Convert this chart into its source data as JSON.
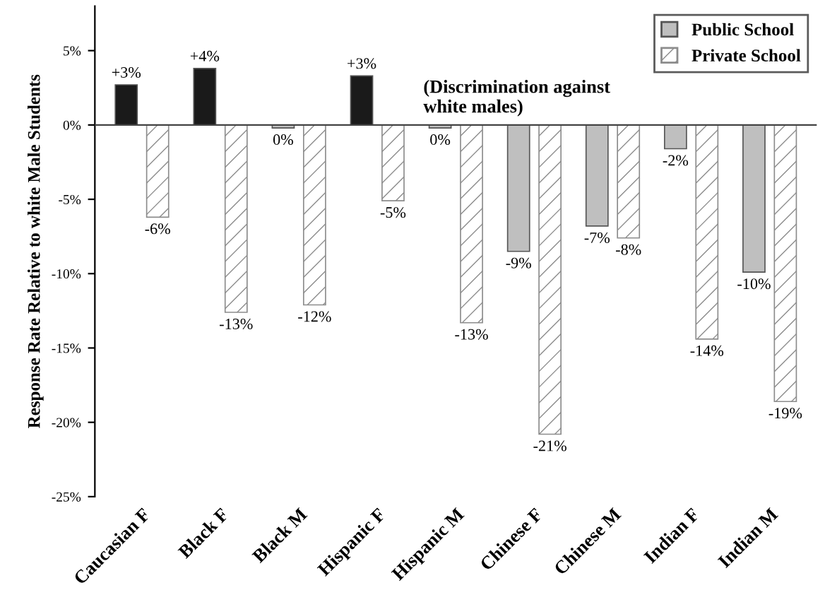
{
  "chart_data": {
    "type": "bar",
    "ylabel": "Response Rate Relative to white Male Students",
    "categories": [
      "Caucasian F",
      "Black F",
      "Black M",
      "Hispanic F",
      "Hispanic M",
      "Chinese F",
      "Chinese M",
      "Indian F",
      "Indian M"
    ],
    "series": [
      {
        "name": "Public School",
        "color": "#bfbfbf",
        "colors": [
          "#1a1a1a",
          "#1a1a1a",
          "#bfbfbf",
          "#1a1a1a",
          "#bfbfbf",
          "#bfbfbf",
          "#bfbfbf",
          "#bfbfbf",
          "#bfbfbf"
        ],
        "values": [
          2.7,
          3.8,
          -0.2,
          3.3,
          -0.2,
          -8.5,
          -6.8,
          -1.6,
          -9.9
        ],
        "value_labels": [
          "+3%",
          "+4%",
          "0%",
          "+3%",
          "0%",
          "-9%",
          "-7%",
          "-2%",
          "-10%"
        ]
      },
      {
        "name": "Private School",
        "color": "#8c8c8c",
        "values": [
          -6.2,
          -12.6,
          -12.1,
          -5.1,
          -13.3,
          -20.8,
          -7.6,
          -14.4,
          -18.6
        ],
        "value_labels": [
          "-6%",
          "-13%",
          "-12%",
          "-5%",
          "-13%",
          "-21%",
          "-8%",
          "-14%",
          "-19%"
        ]
      }
    ],
    "ylim": [
      -25,
      8
    ],
    "yticks": [
      {
        "value": -25,
        "label": "-25%"
      },
      {
        "value": -20,
        "label": "-20%"
      },
      {
        "value": -15,
        "label": "-15%"
      },
      {
        "value": -10,
        "label": "-10%"
      },
      {
        "value": -5,
        "label": "-5%"
      },
      {
        "value": 0,
        "label": "0%"
      },
      {
        "value": 5,
        "label": "5%"
      }
    ],
    "annotations": [
      "(Discrimination against\nwhite males)"
    ],
    "ref_lines": [
      {
        "axis": "y",
        "value": 0,
        "color": "#444444"
      }
    ],
    "legend": "top right",
    "grid": false
  }
}
